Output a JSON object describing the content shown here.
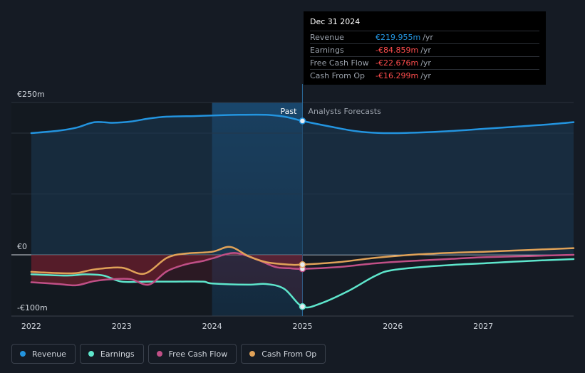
{
  "colors": {
    "revenue": "#2394df",
    "earnings": "#5ee6cc",
    "free_cash_flow": "#c04f86",
    "cash_from_op": "#e0a258",
    "background": "#151b24"
  },
  "tooltip": {
    "date": "Dec 31 2024",
    "unit": "/yr",
    "rows": [
      {
        "label": "Revenue",
        "value": "€219.955m",
        "color": "#2394df"
      },
      {
        "label": "Earnings",
        "value": "-€84.859m",
        "color": "#ff4d4d"
      },
      {
        "label": "Free Cash Flow",
        "value": "-€22.676m",
        "color": "#ff4d4d"
      },
      {
        "label": "Cash From Op",
        "value": "-€16.299m",
        "color": "#ff4d4d"
      }
    ]
  },
  "legend": [
    {
      "label": "Revenue",
      "color": "#2394df"
    },
    {
      "label": "Earnings",
      "color": "#5ee6cc"
    },
    {
      "label": "Free Cash Flow",
      "color": "#c04f86"
    },
    {
      "label": "Cash From Op",
      "color": "#e0a258"
    }
  ],
  "chart_data": {
    "type": "line",
    "y_labels": [
      "€250m",
      "€0",
      "-€100m"
    ],
    "y_label_values": [
      250,
      0,
      -100
    ],
    "x_ticks": [
      "2022",
      "2023",
      "2024",
      "2025",
      "2026",
      "2027"
    ],
    "x_tick_values": [
      2022,
      2023,
      2024,
      2025,
      2026,
      2027
    ],
    "xlim": [
      2021.78,
      2028.0
    ],
    "ylim": [
      -100,
      250
    ],
    "past_label": "Past",
    "forecast_label": "Analysts Forecasts",
    "divider_x": 2025.0,
    "highlight_start_x": 2024.0,
    "grid": true,
    "series": [
      {
        "name": "Revenue",
        "key": "revenue",
        "x": [
          2022.0,
          2022.3,
          2022.5,
          2022.7,
          2022.9,
          2023.1,
          2023.3,
          2023.5,
          2023.8,
          2024.0,
          2024.3,
          2024.6,
          2024.8,
          2025.0,
          2025.3,
          2025.6,
          2025.9,
          2026.3,
          2026.6,
          2027.0,
          2027.4,
          2027.7,
          2028.0
        ],
        "y": [
          200,
          204,
          209,
          218,
          217,
          219,
          224,
          227,
          228,
          229,
          230,
          230,
          227,
          220,
          211,
          203,
          200,
          201,
          203,
          207,
          211,
          214,
          218
        ]
      },
      {
        "name": "Earnings",
        "key": "earnings",
        "x": [
          2022.0,
          2022.4,
          2022.6,
          2022.8,
          2023.0,
          2023.3,
          2023.6,
          2023.9,
          2024.0,
          2024.4,
          2024.6,
          2024.8,
          2025.0,
          2025.2,
          2025.5,
          2025.8,
          2026.0,
          2026.5,
          2027.0,
          2027.5,
          2028.0
        ],
        "y": [
          -32,
          -34,
          -32,
          -34,
          -44,
          -44,
          -44,
          -44,
          -47,
          -49,
          -48,
          -56,
          -85,
          -80,
          -60,
          -35,
          -25,
          -18,
          -14,
          -10,
          -7
        ]
      },
      {
        "name": "Free Cash Flow",
        "key": "free_cash_flow",
        "x": [
          2022.0,
          2022.3,
          2022.5,
          2022.7,
          2022.9,
          2023.1,
          2023.3,
          2023.5,
          2023.7,
          2023.9,
          2024.0,
          2024.25,
          2024.5,
          2024.7,
          2024.85,
          2025.0,
          2025.4,
          2025.8,
          2026.2,
          2026.6,
          2027.0,
          2027.5,
          2028.0
        ],
        "y": [
          -45,
          -48,
          -50,
          -43,
          -40,
          -40,
          -49,
          -27,
          -16,
          -10,
          -6,
          3,
          -8,
          -20,
          -22,
          -23,
          -20,
          -14,
          -10,
          -7,
          -4,
          -2,
          0
        ]
      },
      {
        "name": "Cash From Op",
        "key": "cash_from_op",
        "x": [
          2022.0,
          2022.3,
          2022.5,
          2022.7,
          2023.0,
          2023.25,
          2023.5,
          2023.7,
          2024.0,
          2024.2,
          2024.4,
          2024.6,
          2024.85,
          2025.0,
          2025.4,
          2025.8,
          2026.2,
          2026.6,
          2027.0,
          2027.5,
          2028.0
        ],
        "y": [
          -28,
          -30,
          -30,
          -24,
          -21,
          -31,
          -5,
          2,
          5,
          13,
          -2,
          -12,
          -16,
          -16,
          -12,
          -5,
          0,
          3,
          5,
          8,
          11
        ]
      }
    ]
  }
}
